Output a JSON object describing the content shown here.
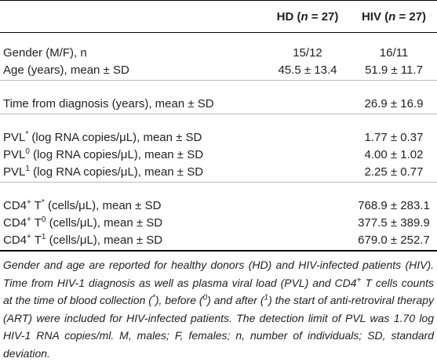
{
  "table": {
    "columns": [
      [
        {
          "text": "HD ("
        },
        {
          "text": "n",
          "italic": true
        },
        {
          "text": " = 27)"
        }
      ],
      [
        {
          "text": "HIV ("
        },
        {
          "text": "n",
          "italic": true
        },
        {
          "text": " = 27)"
        }
      ]
    ],
    "groups": [
      {
        "rows": [
          {
            "label": [
              {
                "text": "Gender (M/F), n"
              }
            ],
            "cells": [
              "15/12",
              "16/11"
            ]
          },
          {
            "label": [
              {
                "text": "Age (years), mean ± SD"
              }
            ],
            "cells": [
              "45.5 ± 13.4",
              "51.9 ± 11.7"
            ]
          }
        ]
      },
      {
        "rows": [
          {
            "label": [
              {
                "text": "Time from diagnosis (years), mean ± SD"
              }
            ],
            "cells": [
              null,
              "26.9 ± 16.9"
            ]
          }
        ]
      },
      {
        "rows": [
          {
            "label": [
              {
                "text": "PVL"
              },
              {
                "text": "*",
                "sup": true
              },
              {
                "text": " (log RNA copies/μL), mean ± SD"
              }
            ],
            "cells": [
              null,
              "1.77 ± 0.37"
            ]
          },
          {
            "label": [
              {
                "text": "PVL"
              },
              {
                "text": "0",
                "sup": true
              },
              {
                "text": " (log RNA copies/μL), mean ± SD"
              }
            ],
            "cells": [
              null,
              "4.00 ± 1.02"
            ]
          },
          {
            "label": [
              {
                "text": "PVL"
              },
              {
                "text": "1",
                "sup": true
              },
              {
                "text": " (log RNA copies/μL), mean ± SD"
              }
            ],
            "cells": [
              null,
              "2.25 ± 0.77"
            ]
          }
        ]
      },
      {
        "rows": [
          {
            "label": [
              {
                "text": "CD4"
              },
              {
                "text": "+",
                "sup": true
              },
              {
                "text": " T"
              },
              {
                "text": "*",
                "sup": true
              },
              {
                "text": " (cells/μL), mean ± SD"
              }
            ],
            "cells": [
              null,
              "768.9 ± 283.1"
            ]
          },
          {
            "label": [
              {
                "text": "CD4"
              },
              {
                "text": "+",
                "sup": true
              },
              {
                "text": " T"
              },
              {
                "text": "0",
                "sup": true
              },
              {
                "text": " (cells/μL), mean ± SD"
              }
            ],
            "cells": [
              null,
              "377.5 ± 389.9"
            ]
          },
          {
            "label": [
              {
                "text": "CD4"
              },
              {
                "text": "+",
                "sup": true
              },
              {
                "text": " T"
              },
              {
                "text": "1",
                "sup": true
              },
              {
                "text": " (cells/μL), mean ± SD"
              }
            ],
            "cells": [
              null,
              "679.0 ± 252.7"
            ]
          }
        ]
      }
    ]
  },
  "footnote": [
    {
      "text": "Gender and age are reported for healthy donors (HD) and HIV-infected patients (HIV). Time from HIV-1 diagnosis as well as plasma viral load (PVL) and CD4"
    },
    {
      "text": "+",
      "sup": true
    },
    {
      "text": " T cells counts at the time of blood collection ("
    },
    {
      "text": "*",
      "sup": true
    },
    {
      "text": "), before ("
    },
    {
      "text": "0",
      "sup": true
    },
    {
      "text": ") and after ("
    },
    {
      "text": "1",
      "sup": true
    },
    {
      "text": ") the start of anti-retroviral therapy (ART) were included for HIV-infected patients. The detection limit of PVL was 1.70 log HIV-1 RNA copies/ml. M, males; F, females; n, number of individuals; SD, standard deviation."
    }
  ]
}
